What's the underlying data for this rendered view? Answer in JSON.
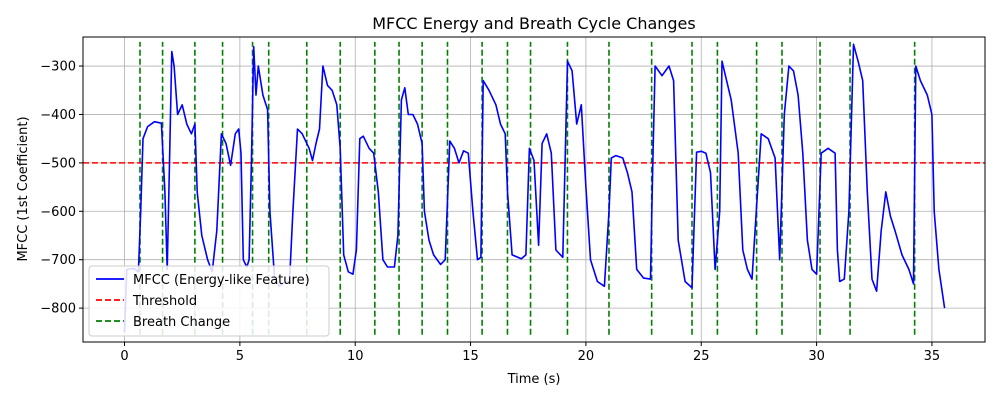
{
  "chart_data": {
    "type": "line",
    "title": "MFCC Energy and Breath Cycle Changes",
    "xlabel": "Time (s)",
    "ylabel": "MFCC (1st Coefficient)",
    "xlim": [
      -1.8,
      37.3
    ],
    "ylim": [
      -870,
      -240
    ],
    "xticks": [
      0,
      5,
      10,
      15,
      20,
      25,
      30,
      35
    ],
    "yticks": [
      -800,
      -700,
      -600,
      -500,
      -400,
      -300
    ],
    "grid": true,
    "legend_position": "lower-left",
    "colors": {
      "mfcc": "#0000ff",
      "threshold": "#ff0000",
      "breath": "#008000"
    },
    "series": [
      {
        "name": "MFCC (Energy-like Feature)",
        "style": "solid",
        "points": [
          [
            0.0,
            -850
          ],
          [
            0.1,
            -720
          ],
          [
            0.4,
            -718
          ],
          [
            0.6,
            -725
          ],
          [
            0.7,
            -600
          ],
          [
            0.8,
            -450
          ],
          [
            1.0,
            -425
          ],
          [
            1.3,
            -415
          ],
          [
            1.6,
            -418
          ],
          [
            1.75,
            -560
          ],
          [
            1.85,
            -720
          ],
          [
            1.95,
            -500
          ],
          [
            2.05,
            -270
          ],
          [
            2.15,
            -300
          ],
          [
            2.3,
            -400
          ],
          [
            2.5,
            -380
          ],
          [
            2.7,
            -420
          ],
          [
            2.9,
            -440
          ],
          [
            3.05,
            -420
          ],
          [
            3.15,
            -560
          ],
          [
            3.35,
            -650
          ],
          [
            3.6,
            -700
          ],
          [
            3.8,
            -725
          ],
          [
            4.0,
            -640
          ],
          [
            4.2,
            -440
          ],
          [
            4.4,
            -460
          ],
          [
            4.6,
            -505
          ],
          [
            4.8,
            -440
          ],
          [
            4.95,
            -430
          ],
          [
            5.05,
            -480
          ],
          [
            5.15,
            -700
          ],
          [
            5.3,
            -715
          ],
          [
            5.4,
            -700
          ],
          [
            5.5,
            -500
          ],
          [
            5.6,
            -260
          ],
          [
            5.7,
            -360
          ],
          [
            5.8,
            -300
          ],
          [
            6.0,
            -360
          ],
          [
            6.2,
            -390
          ],
          [
            6.3,
            -600
          ],
          [
            6.5,
            -735
          ],
          [
            6.7,
            -755
          ],
          [
            6.9,
            -748
          ],
          [
            7.15,
            -745
          ],
          [
            7.3,
            -600
          ],
          [
            7.5,
            -430
          ],
          [
            7.7,
            -440
          ],
          [
            8.0,
            -470
          ],
          [
            8.15,
            -495
          ],
          [
            8.3,
            -460
          ],
          [
            8.45,
            -430
          ],
          [
            8.6,
            -300
          ],
          [
            8.8,
            -340
          ],
          [
            9.0,
            -350
          ],
          [
            9.2,
            -380
          ],
          [
            9.35,
            -470
          ],
          [
            9.5,
            -690
          ],
          [
            9.7,
            -725
          ],
          [
            9.9,
            -730
          ],
          [
            10.05,
            -680
          ],
          [
            10.2,
            -450
          ],
          [
            10.35,
            -445
          ],
          [
            10.6,
            -470
          ],
          [
            10.8,
            -480
          ],
          [
            11.0,
            -560
          ],
          [
            11.2,
            -700
          ],
          [
            11.4,
            -715
          ],
          [
            11.7,
            -715
          ],
          [
            11.85,
            -650
          ],
          [
            12.0,
            -370
          ],
          [
            12.15,
            -345
          ],
          [
            12.3,
            -400
          ],
          [
            12.5,
            -400
          ],
          [
            12.7,
            -420
          ],
          [
            12.9,
            -460
          ],
          [
            13.0,
            -600
          ],
          [
            13.2,
            -660
          ],
          [
            13.4,
            -690
          ],
          [
            13.7,
            -710
          ],
          [
            13.9,
            -700
          ],
          [
            14.1,
            -455
          ],
          [
            14.3,
            -470
          ],
          [
            14.5,
            -500
          ],
          [
            14.7,
            -475
          ],
          [
            14.9,
            -480
          ],
          [
            15.1,
            -600
          ],
          [
            15.3,
            -700
          ],
          [
            15.45,
            -695
          ],
          [
            15.55,
            -330
          ],
          [
            15.8,
            -350
          ],
          [
            16.1,
            -380
          ],
          [
            16.3,
            -420
          ],
          [
            16.5,
            -440
          ],
          [
            16.6,
            -560
          ],
          [
            16.8,
            -690
          ],
          [
            17.2,
            -698
          ],
          [
            17.4,
            -690
          ],
          [
            17.55,
            -470
          ],
          [
            17.75,
            -495
          ],
          [
            17.95,
            -670
          ],
          [
            18.1,
            -460
          ],
          [
            18.3,
            -440
          ],
          [
            18.5,
            -480
          ],
          [
            18.7,
            -680
          ],
          [
            19.0,
            -695
          ],
          [
            19.2,
            -290
          ],
          [
            19.4,
            -310
          ],
          [
            19.6,
            -420
          ],
          [
            19.8,
            -380
          ],
          [
            20.0,
            -550
          ],
          [
            20.2,
            -700
          ],
          [
            20.5,
            -745
          ],
          [
            20.8,
            -755
          ],
          [
            21.0,
            -600
          ],
          [
            21.1,
            -490
          ],
          [
            21.3,
            -485
          ],
          [
            21.6,
            -490
          ],
          [
            21.8,
            -520
          ],
          [
            22.0,
            -560
          ],
          [
            22.2,
            -720
          ],
          [
            22.5,
            -738
          ],
          [
            22.8,
            -740
          ],
          [
            22.9,
            -500
          ],
          [
            23.0,
            -300
          ],
          [
            23.3,
            -320
          ],
          [
            23.6,
            -300
          ],
          [
            23.8,
            -330
          ],
          [
            24.0,
            -660
          ],
          [
            24.3,
            -745
          ],
          [
            24.6,
            -758
          ],
          [
            24.8,
            -478
          ],
          [
            25.0,
            -476
          ],
          [
            25.2,
            -480
          ],
          [
            25.4,
            -520
          ],
          [
            25.6,
            -720
          ],
          [
            25.8,
            -600
          ],
          [
            25.9,
            -290
          ],
          [
            26.1,
            -330
          ],
          [
            26.3,
            -370
          ],
          [
            26.6,
            -480
          ],
          [
            26.8,
            -680
          ],
          [
            27.0,
            -720
          ],
          [
            27.2,
            -740
          ],
          [
            27.4,
            -590
          ],
          [
            27.6,
            -440
          ],
          [
            27.9,
            -450
          ],
          [
            28.2,
            -490
          ],
          [
            28.4,
            -700
          ],
          [
            28.6,
            -400
          ],
          [
            28.8,
            -300
          ],
          [
            29.0,
            -310
          ],
          [
            29.2,
            -360
          ],
          [
            29.4,
            -480
          ],
          [
            29.6,
            -660
          ],
          [
            29.8,
            -720
          ],
          [
            30.0,
            -730
          ],
          [
            30.2,
            -480
          ],
          [
            30.5,
            -470
          ],
          [
            30.8,
            -480
          ],
          [
            30.9,
            -680
          ],
          [
            31.0,
            -745
          ],
          [
            31.2,
            -740
          ],
          [
            31.4,
            -600
          ],
          [
            31.6,
            -255
          ],
          [
            31.8,
            -290
          ],
          [
            32.0,
            -330
          ],
          [
            32.2,
            -560
          ],
          [
            32.4,
            -740
          ],
          [
            32.6,
            -765
          ],
          [
            32.8,
            -640
          ],
          [
            33.0,
            -560
          ],
          [
            33.2,
            -610
          ],
          [
            33.4,
            -640
          ],
          [
            33.7,
            -690
          ],
          [
            34.0,
            -720
          ],
          [
            34.2,
            -750
          ],
          [
            34.3,
            -300
          ],
          [
            34.5,
            -330
          ],
          [
            34.8,
            -360
          ],
          [
            35.0,
            -400
          ],
          [
            35.1,
            -600
          ],
          [
            35.3,
            -720
          ],
          [
            35.55,
            -800
          ]
        ]
      },
      {
        "name": "Threshold",
        "style": "dashed",
        "y": -500
      },
      {
        "name": "Breath Change",
        "style": "dashed",
        "x": [
          0.67,
          1.65,
          3.05,
          4.25,
          5.55,
          6.25,
          7.9,
          9.35,
          10.85,
          11.9,
          12.9,
          14.0,
          15.5,
          16.6,
          17.6,
          19.2,
          21.0,
          22.85,
          24.6,
          25.7,
          27.4,
          28.5,
          30.15,
          31.45,
          34.25
        ],
        "y_range": [
          -855,
          -250
        ]
      }
    ],
    "legend": [
      "MFCC (Energy-like Feature)",
      "Threshold",
      "Breath Change"
    ]
  }
}
